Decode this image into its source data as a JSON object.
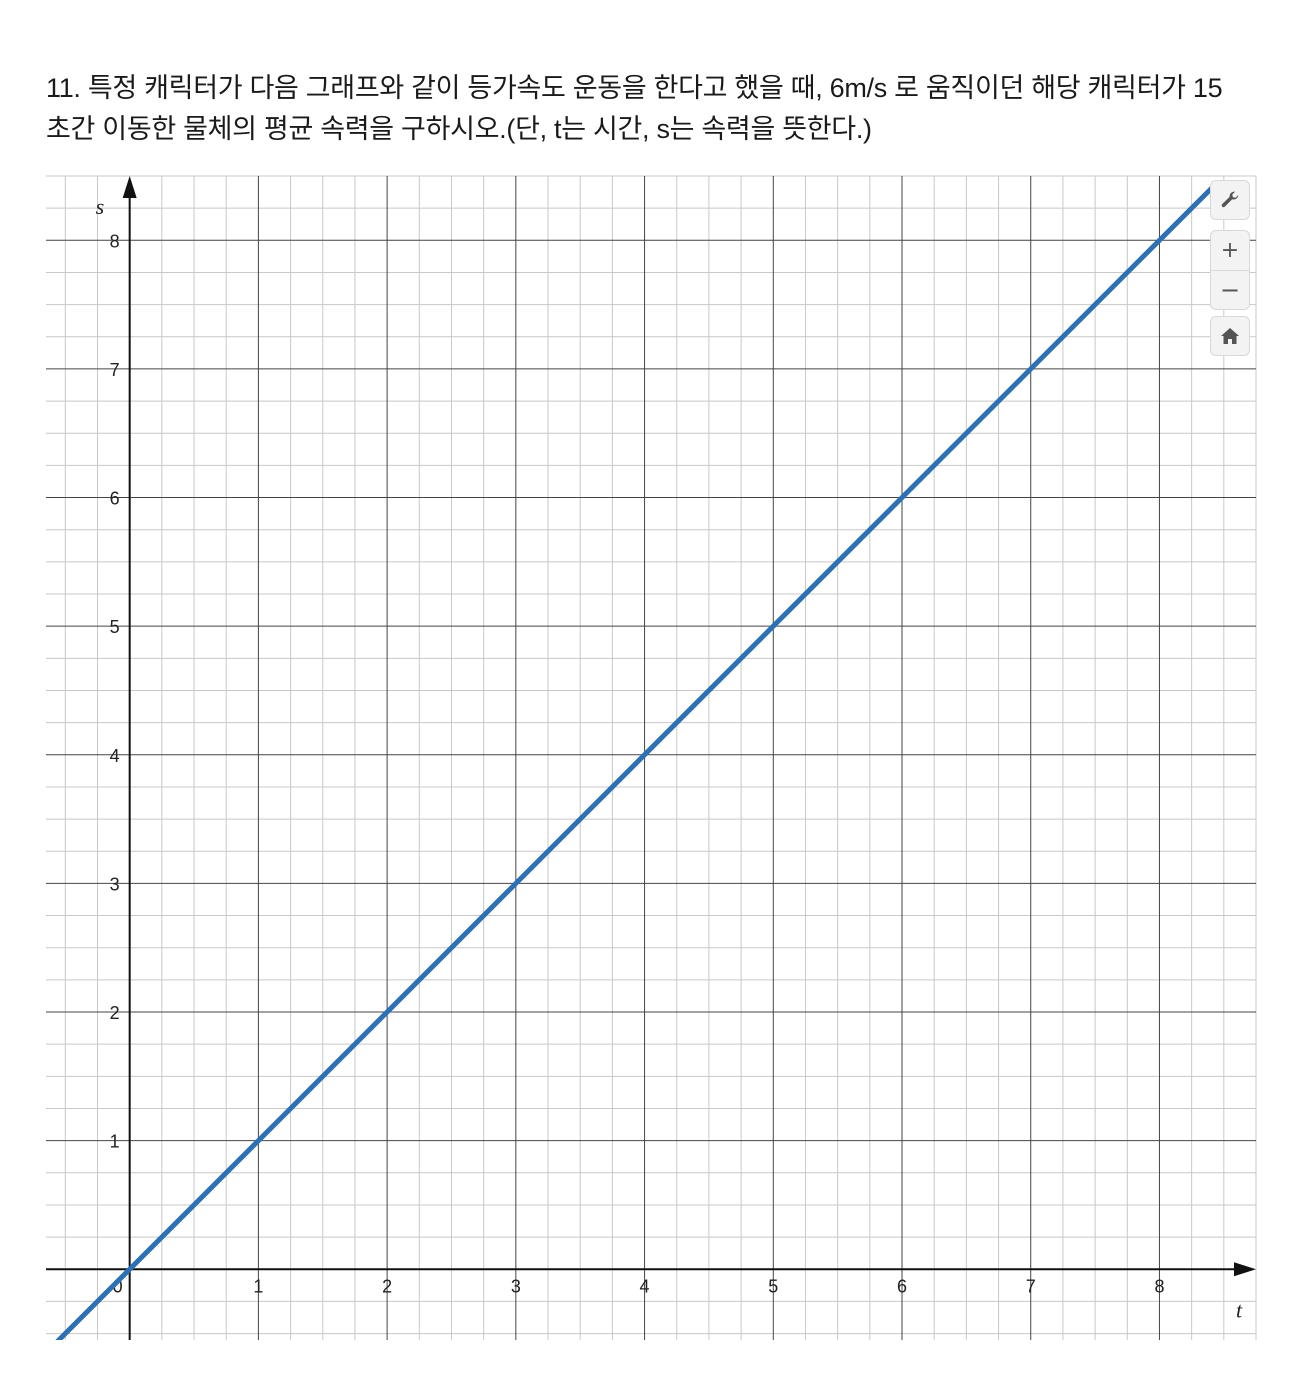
{
  "question": {
    "line1": "11. 특정 캐릭터가 다음 그래프와 같이 등가속도 운동을 한다고 했을 때, 6m/s 로 움직이던 해당 캐릭터가 15",
    "line2": "초간 이동한 물체의 평균 속력을 구하시오.(단, t는 시간, s는 속력을 뜻한다.)"
  },
  "toolbar": {
    "wrench_icon": "wrench-icon",
    "zoom_in_label": "+",
    "zoom_out_label": "−",
    "home_icon": "home-icon"
  },
  "chart_data": {
    "type": "line",
    "xlabel": "t",
    "ylabel": "s",
    "xlim": [
      -0.65,
      8.75
    ],
    "ylim": [
      -0.55,
      8.5
    ],
    "x_ticks": [
      0,
      1,
      2,
      3,
      4,
      5,
      6,
      7,
      8
    ],
    "y_ticks": [
      1,
      2,
      3,
      4,
      5,
      6,
      7,
      8
    ],
    "x_tick_labels": [
      "0",
      "1",
      "2",
      "3",
      "4",
      "5",
      "6",
      "7",
      "8"
    ],
    "y_tick_labels": [
      "1",
      "2",
      "3",
      "4",
      "5",
      "6",
      "7",
      "8"
    ],
    "grid": true,
    "minor_grid_step": 0.25,
    "series": [
      {
        "color": "#2d70b3",
        "x": [
          -0.6,
          8.4
        ],
        "y": [
          -0.6,
          8.4
        ]
      }
    ]
  }
}
